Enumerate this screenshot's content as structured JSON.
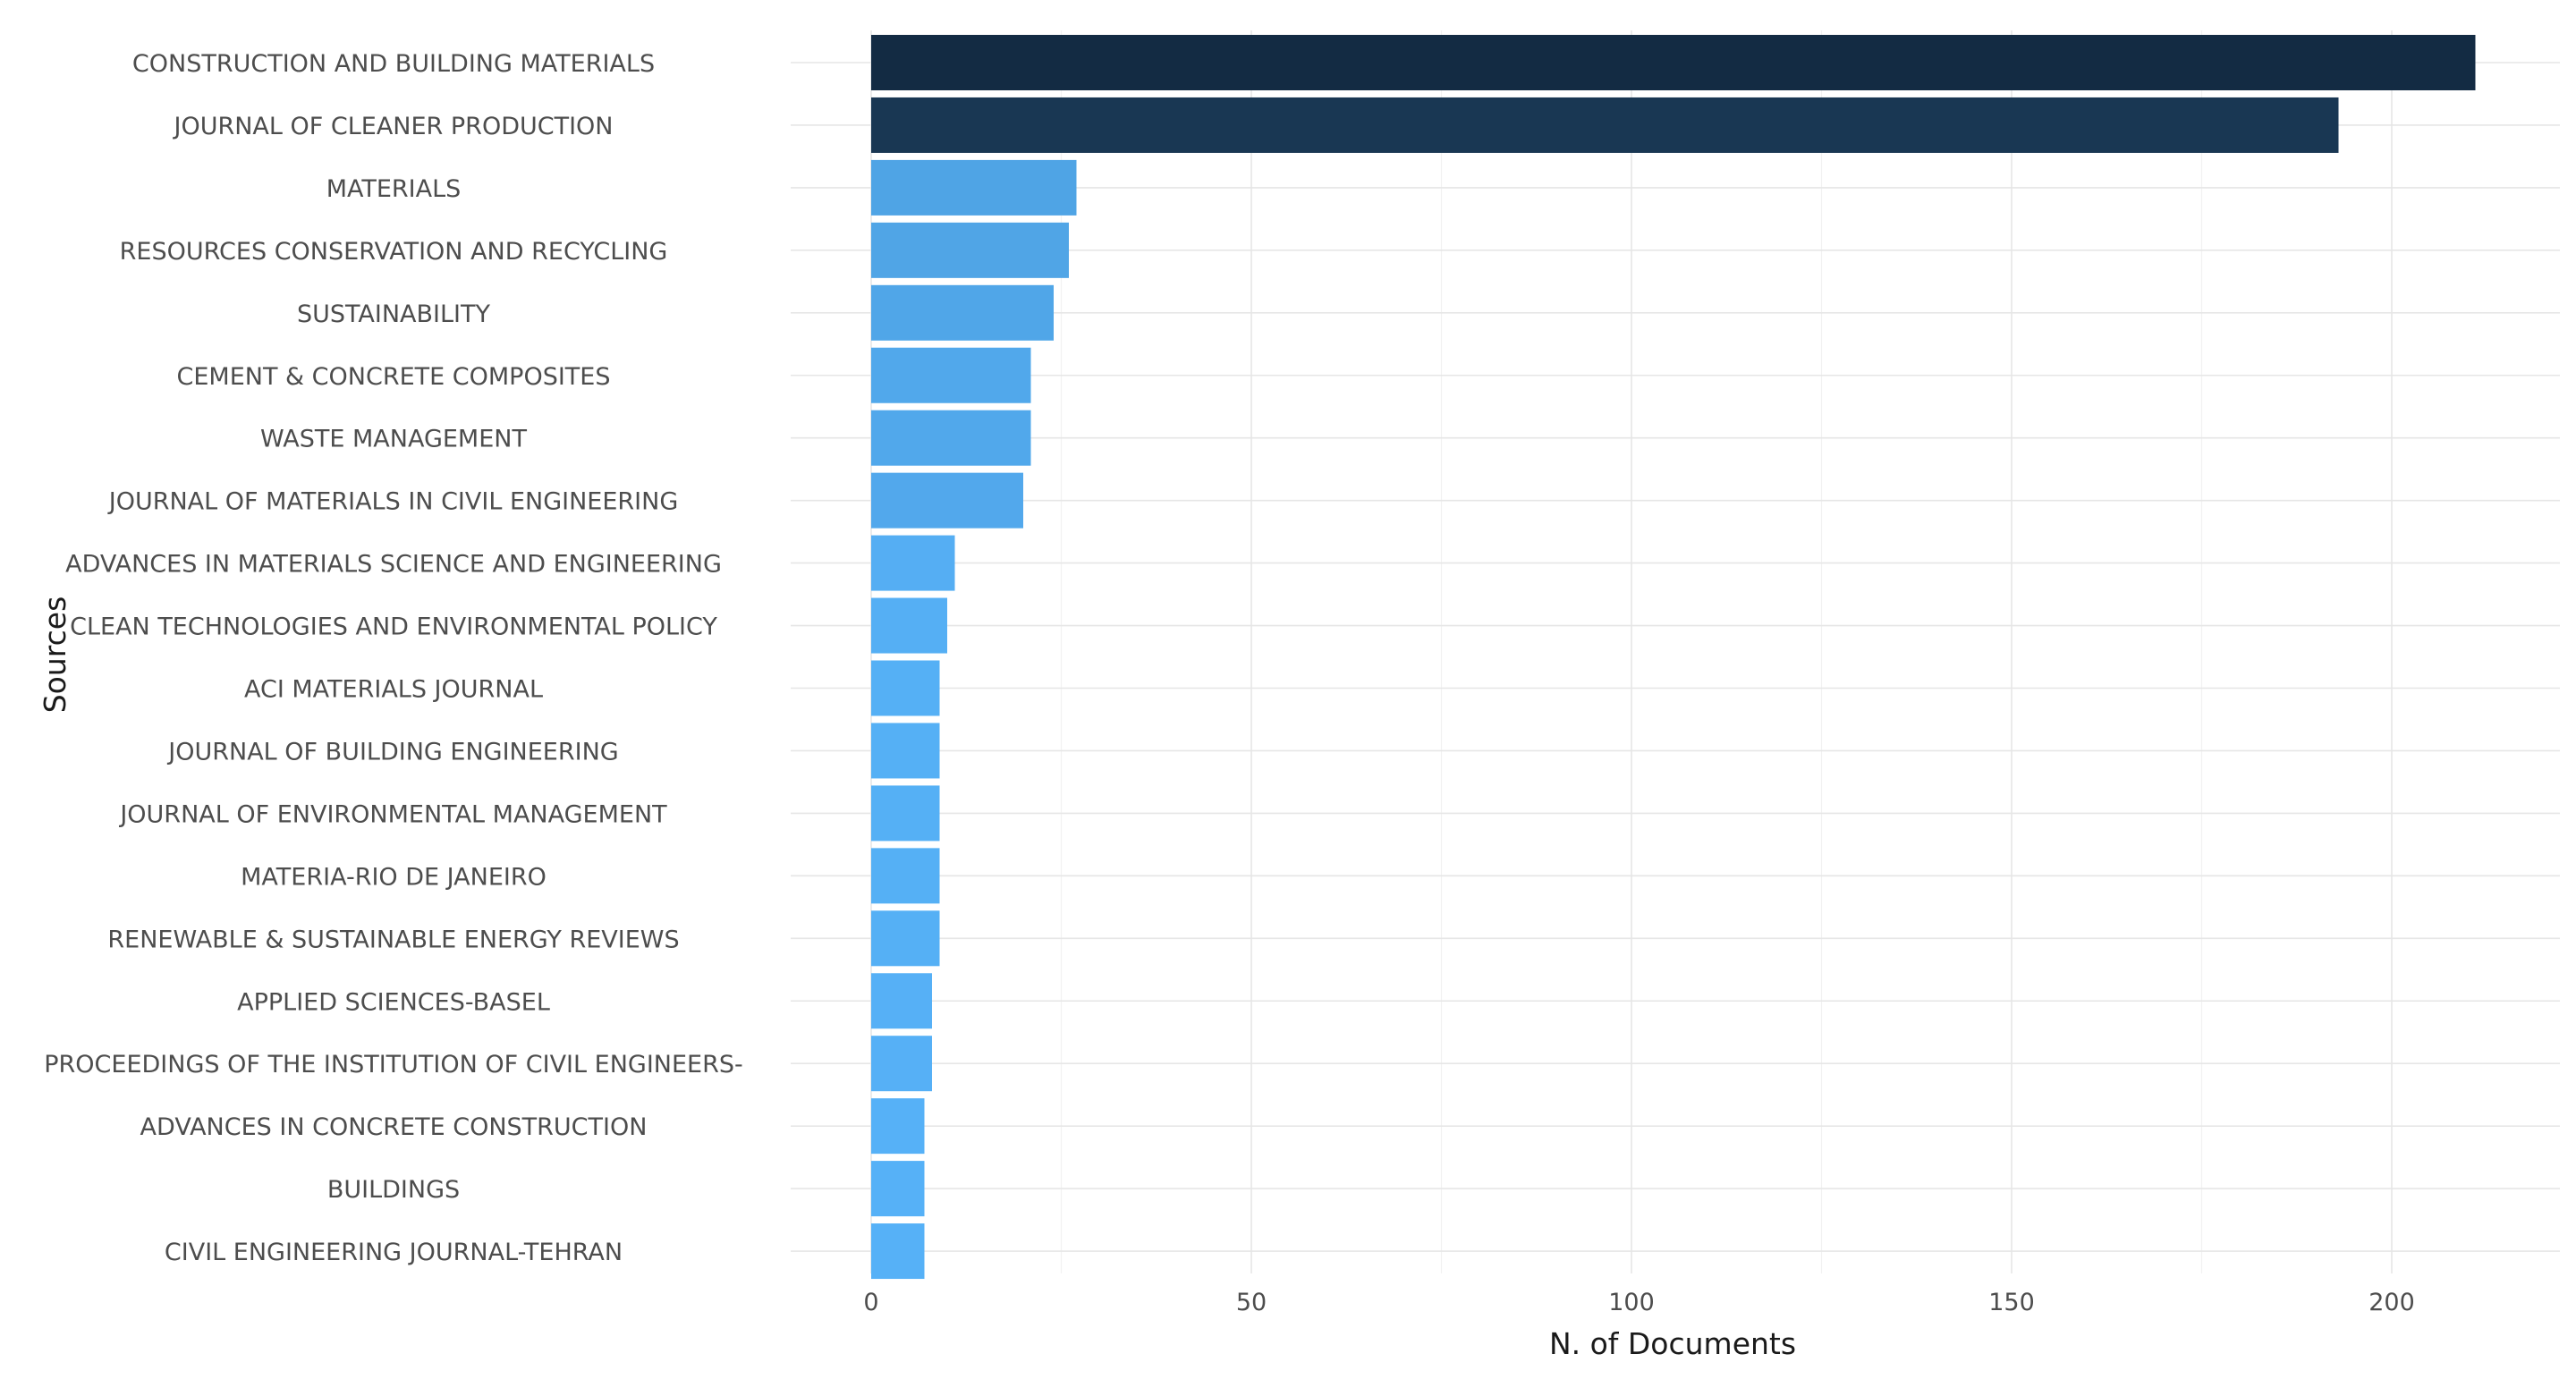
{
  "chart_data": {
    "type": "bar",
    "orientation": "horizontal",
    "title": "",
    "xlabel": "N. of Documents",
    "ylabel": "Sources",
    "xlim": [
      0,
      220
    ],
    "xticks": [
      0,
      50,
      100,
      150,
      200
    ],
    "grid": true,
    "categories": [
      "CONSTRUCTION AND BUILDING MATERIALS",
      "JOURNAL OF CLEANER PRODUCTION",
      "MATERIALS",
      "RESOURCES CONSERVATION AND RECYCLING",
      "SUSTAINABILITY",
      "CEMENT & CONCRETE COMPOSITES",
      "WASTE MANAGEMENT",
      "JOURNAL OF MATERIALS IN CIVIL ENGINEERING",
      "ADVANCES IN MATERIALS SCIENCE AND ENGINEERING",
      "CLEAN TECHNOLOGIES AND ENVIRONMENTAL POLICY",
      "ACI MATERIALS JOURNAL",
      "JOURNAL OF BUILDING ENGINEERING",
      "JOURNAL OF ENVIRONMENTAL MANAGEMENT",
      "MATERIA-RIO DE JANEIRO",
      "RENEWABLE & SUSTAINABLE ENERGY REVIEWS",
      "APPLIED SCIENCES-BASEL",
      "PROCEEDINGS OF THE INSTITUTION OF CIVIL ENGINEERS-",
      "ADVANCES IN CONCRETE CONSTRUCTION",
      "BUILDINGS",
      "CIVIL ENGINEERING JOURNAL-TEHRAN"
    ],
    "values": [
      211,
      193,
      27,
      26,
      24,
      21,
      21,
      20,
      11,
      10,
      9,
      9,
      9,
      9,
      9,
      8,
      8,
      7,
      7,
      7
    ],
    "colors": {
      "low": "#56b1f7",
      "high": "#132b43"
    }
  }
}
